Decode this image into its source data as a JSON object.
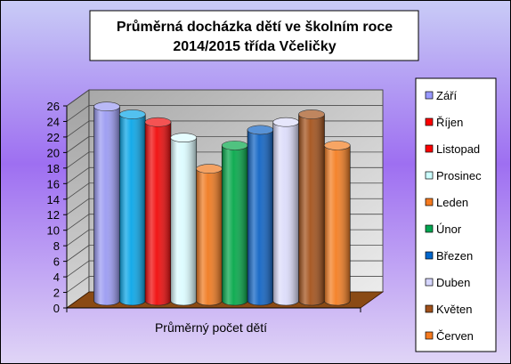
{
  "chart_data": {
    "type": "bar",
    "style": "3d-cylinder",
    "title": [
      "Průměrná docházka dětí ve školním roce",
      "2014/2015 třída Včeličky"
    ],
    "categories": [
      "Průměrný počet dětí"
    ],
    "xlabel": "",
    "ylabel": "",
    "ylim": [
      0,
      26
    ],
    "yticks": [
      0,
      2,
      4,
      6,
      8,
      10,
      12,
      14,
      16,
      18,
      20,
      22,
      24,
      26
    ],
    "grid": true,
    "legend_position": "right",
    "series": [
      {
        "name": "Září",
        "values": [
          25
        ],
        "color": "#9b9bf2",
        "legend_color": "#9999ff"
      },
      {
        "name": "Říjen",
        "values": [
          24
        ],
        "color": "#0aa6e8",
        "legend_color": "#ff0000"
      },
      {
        "name": "Listopad",
        "values": [
          23
        ],
        "color": "#f00a0a",
        "legend_color": "#ff0000"
      },
      {
        "name": "Prosinec",
        "values": [
          21
        ],
        "color": "#dcfcff",
        "legend_color": "#ccffff"
      },
      {
        "name": "Leden",
        "values": [
          17
        ],
        "color": "#f07a20",
        "legend_color": "#f57a1f"
      },
      {
        "name": "Únor",
        "values": [
          20
        ],
        "color": "#05a84a",
        "legend_color": "#00a651"
      },
      {
        "name": "Březen",
        "values": [
          22
        ],
        "color": "#1164c4",
        "legend_color": "#0066cc"
      },
      {
        "name": "Duben",
        "values": [
          23
        ],
        "color": "#dcdcfa",
        "legend_color": "#d6d6ff"
      },
      {
        "name": "Květen",
        "values": [
          24
        ],
        "color": "#a4521b",
        "legend_color": "#a0501a"
      },
      {
        "name": "Červen",
        "values": [
          20
        ],
        "color": "#f47e22",
        "legend_color": "#f57a1f"
      }
    ]
  },
  "theme": {
    "bg_top": "#c9ccf6",
    "bg_mid": "#9e6ff1",
    "bg_bottom": "#e0d5f6",
    "wall_dark": "#a8a8a8",
    "wall_light": "#ececec",
    "floor": "#8a4a14",
    "gridline": "#4a4a4a"
  }
}
